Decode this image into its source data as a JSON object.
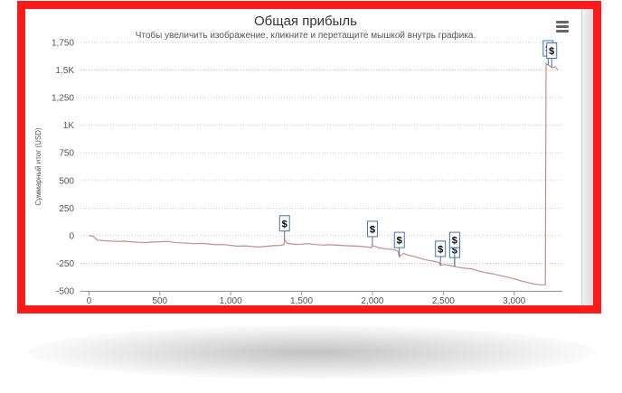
{
  "chart_data": {
    "type": "line",
    "title": "Общая прибыль",
    "subtitle": "Чтобы увеличить изображение, кликните и перетащите мышкой внутрь графика.",
    "ylabel": "Суммарный итог (USD)",
    "xlabel": "",
    "xlim": [
      -60,
      3340
    ],
    "ylim": [
      -500,
      1750
    ],
    "x_ticks": [
      0,
      500,
      1000,
      1500,
      2000,
      2500,
      3000
    ],
    "x_tick_labels": [
      "0",
      "500",
      "1,000",
      "1,500",
      "2,000",
      "2,500",
      "3,000"
    ],
    "y_ticks": [
      -500,
      -250,
      0,
      250,
      500,
      750,
      1000,
      1250,
      1500,
      1750
    ],
    "y_tick_labels": [
      "-500",
      "-250",
      "0",
      "250",
      "500",
      "750",
      "1K",
      "1,250",
      "1.5K",
      "1,750"
    ],
    "grid": true,
    "series": [
      {
        "color": "#c98a8a",
        "x": [
          0,
          30,
          60,
          100,
          150,
          200,
          250,
          300,
          350,
          400,
          450,
          500,
          550,
          600,
          650,
          700,
          750,
          800,
          850,
          900,
          950,
          1000,
          1050,
          1100,
          1150,
          1200,
          1250,
          1300,
          1350,
          1375,
          1380,
          1400,
          1450,
          1500,
          1550,
          1600,
          1650,
          1700,
          1750,
          1800,
          1850,
          1900,
          1950,
          1995,
          2000,
          2050,
          2100,
          2150,
          2180,
          2190,
          2220,
          2250,
          2300,
          2350,
          2400,
          2450,
          2470,
          2480,
          2500,
          2550,
          2580,
          2600,
          2650,
          2700,
          2750,
          2800,
          2850,
          2900,
          2950,
          3000,
          3050,
          3100,
          3150,
          3200,
          3220,
          3225,
          3240,
          3255,
          3270,
          3290,
          3310
        ],
        "y": [
          0,
          -5,
          -40,
          -45,
          -48,
          -52,
          -50,
          -55,
          -60,
          -62,
          -58,
          -55,
          -52,
          -60,
          -65,
          -68,
          -72,
          -70,
          -75,
          -82,
          -80,
          -88,
          -95,
          -92,
          -98,
          -102,
          -96,
          -90,
          -88,
          -82,
          -40,
          -70,
          -78,
          -76,
          -72,
          -80,
          -85,
          -82,
          -86,
          -90,
          -92,
          -95,
          -100,
          -108,
          -90,
          -110,
          -120,
          -125,
          -140,
          -190,
          -160,
          -175,
          -190,
          -210,
          -225,
          -235,
          -245,
          -270,
          -260,
          -270,
          -280,
          -285,
          -295,
          -300,
          -320,
          -335,
          -345,
          -360,
          -375,
          -390,
          -410,
          -425,
          -440,
          -445,
          -445,
          1560,
          1545,
          1535,
          1520,
          1530,
          1500
        ]
      }
    ],
    "flags": [
      {
        "x": 1380,
        "label": "$"
      },
      {
        "x": 2000,
        "label": "$"
      },
      {
        "x": 2190,
        "label": "$"
      },
      {
        "x": 2480,
        "label": "$"
      },
      {
        "x": 2580,
        "label": "$"
      },
      {
        "x": 2580,
        "label": "$"
      },
      {
        "x": 3240,
        "label": "$"
      },
      {
        "x": 3265,
        "label": "$"
      }
    ]
  }
}
